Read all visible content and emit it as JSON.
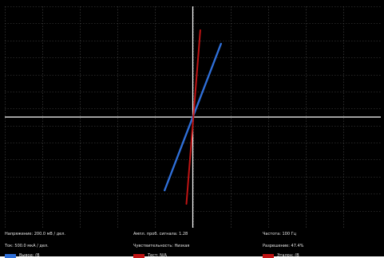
{
  "colors": {
    "background": "#000000",
    "grid": "#4a4a4a",
    "axes": "#ffffff",
    "trace_blue": "#2f6fd8",
    "trace_red": "#c01414",
    "text": "#e6e6e6"
  },
  "info": {
    "voltage": "Напряжение: 200.0 мВ / дел.",
    "probe_amplitude": "Ампл. проб. сигнала: 1.28",
    "frequency": "Частота: 100 Гц",
    "current": "Ток: 500.0 мкА / дел.",
    "sensitivity": "Чувствительность: Низкая",
    "resolution": "Разрешение: 47.4%"
  },
  "legend": {
    "blue_label": "Вывод: (B",
    "red_label": "Тест: N/A",
    "third_label": "Эталон: (B"
  },
  "chart_data": {
    "type": "line",
    "grid": true,
    "xlim": [
      -5,
      5
    ],
    "ylim": [
      -3.25,
      3.25
    ],
    "series": [
      {
        "color": "#2f6fd8",
        "x": [
          -0.75,
          0.75
        ],
        "y": [
          -2.15,
          2.15
        ]
      },
      {
        "color": "#c01414",
        "x": [
          -0.17,
          0.2
        ],
        "y": [
          -2.55,
          2.55
        ]
      }
    ]
  }
}
